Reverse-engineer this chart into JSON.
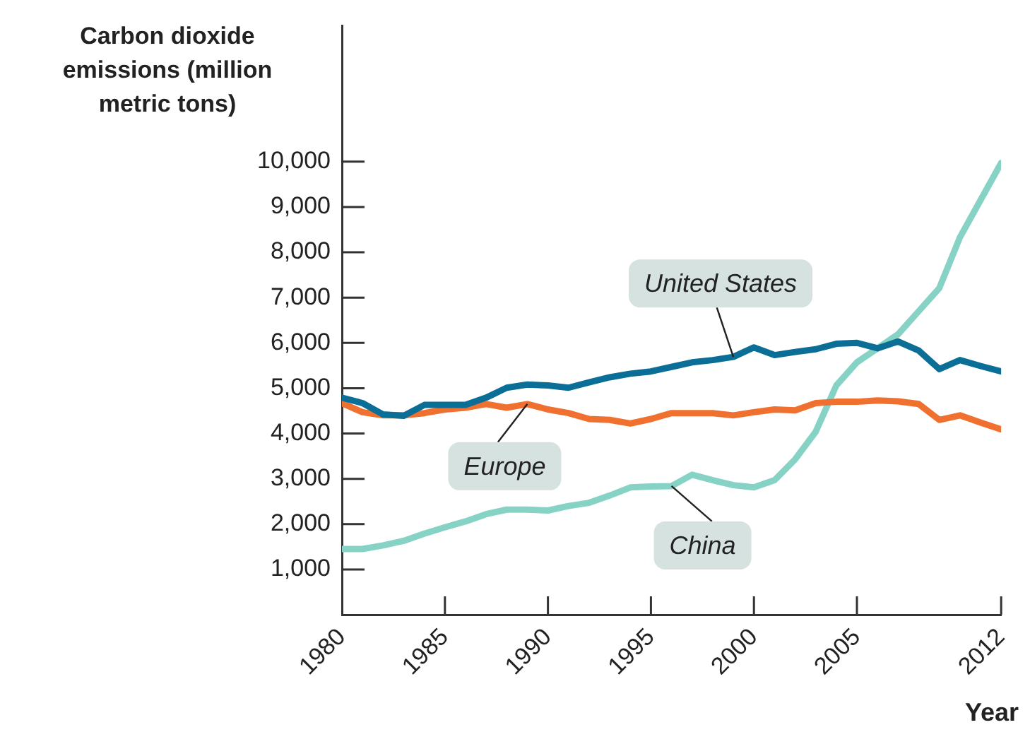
{
  "chart_data": {
    "type": "line",
    "ylabel": "Carbon dioxide emissions (million metric tons)",
    "xlabel": "Year",
    "x": [
      1980,
      1981,
      1982,
      1983,
      1984,
      1985,
      1986,
      1987,
      1988,
      1989,
      1990,
      1991,
      1992,
      1993,
      1994,
      1995,
      1996,
      1997,
      1998,
      1999,
      2000,
      2001,
      2002,
      2003,
      2004,
      2005,
      2006,
      2007,
      2008,
      2009,
      2010,
      2011,
      2012
    ],
    "series": [
      {
        "name": "United States",
        "color": "#0a6e96",
        "values": [
          4790,
          4670,
          4420,
          4390,
          4630,
          4630,
          4630,
          4790,
          5010,
          5080,
          5060,
          5010,
          5130,
          5240,
          5320,
          5370,
          5470,
          5570,
          5620,
          5690,
          5900,
          5730,
          5800,
          5860,
          5980,
          6000,
          5880,
          6030,
          5830,
          5420,
          5620,
          5490,
          5370
        ]
      },
      {
        "name": "Europe",
        "color": "#f07030",
        "values": [
          4670,
          4470,
          4400,
          4400,
          4450,
          4530,
          4570,
          4650,
          4570,
          4650,
          4530,
          4450,
          4320,
          4300,
          4220,
          4320,
          4450,
          4450,
          4450,
          4400,
          4470,
          4530,
          4510,
          4670,
          4700,
          4700,
          4730,
          4710,
          4650,
          4300,
          4400,
          4240,
          4090
        ]
      },
      {
        "name": "China",
        "color": "#86d3c6",
        "values": [
          1450,
          1450,
          1530,
          1630,
          1790,
          1930,
          2060,
          2220,
          2320,
          2320,
          2300,
          2400,
          2470,
          2630,
          2810,
          2830,
          2840,
          3090,
          2970,
          2860,
          2810,
          2970,
          3430,
          4040,
          5060,
          5570,
          5880,
          6190,
          6700,
          7210,
          8330,
          9150,
          9970
        ]
      }
    ],
    "xlim": [
      1980,
      2012
    ],
    "xticks": [
      1980,
      1985,
      1990,
      1995,
      2000,
      2005,
      2012
    ],
    "ylim": [
      0,
      13000
    ],
    "yticks": [
      {
        "value": 1000,
        "label": "1,000"
      },
      {
        "value": 2000,
        "label": "2,000"
      },
      {
        "value": 3000,
        "label": "3,000"
      },
      {
        "value": 4000,
        "label": "4,000"
      },
      {
        "value": 5000,
        "label": "5,000"
      },
      {
        "value": 6000,
        "label": "6,000"
      },
      {
        "value": 7000,
        "label": "7,000"
      },
      {
        "value": 8000,
        "label": "8,000"
      },
      {
        "value": 9000,
        "label": "9,000"
      },
      {
        "value": 10000,
        "label": "10,000"
      }
    ],
    "grid": false,
    "legend": false,
    "marker": "none",
    "line_style": "solid"
  }
}
